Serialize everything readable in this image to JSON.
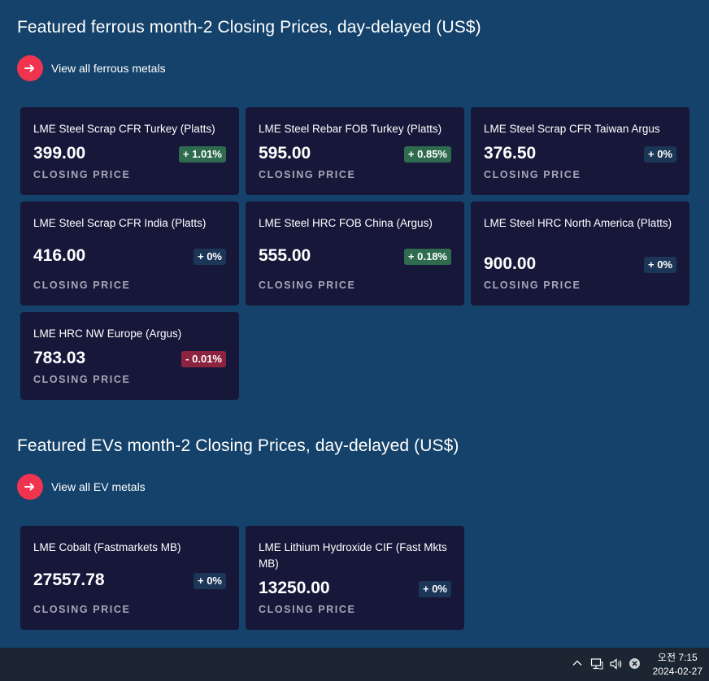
{
  "ferrous": {
    "title": "Featured ferrous month-2 Closing Prices, day-delayed (US$)",
    "link_label": "View all ferrous metals",
    "cards": [
      {
        "name": "LME Steel Scrap CFR Turkey (Platts)",
        "price": "399.00",
        "change": "+ 1.01%",
        "direction": "up",
        "label": "CLOSING PRICE"
      },
      {
        "name": "LME Steel Rebar FOB Turkey (Platts)",
        "price": "595.00",
        "change": "+ 0.85%",
        "direction": "up",
        "label": "CLOSING PRICE"
      },
      {
        "name": "LME Steel Scrap CFR Taiwan Argus",
        "price": "376.50",
        "change": "+ 0%",
        "direction": "flat",
        "label": "CLOSING PRICE"
      },
      {
        "name": "LME Steel Scrap CFR India (Platts)",
        "price": "416.00",
        "change": "+ 0%",
        "direction": "flat",
        "label": "CLOSING PRICE"
      },
      {
        "name": "LME Steel HRC FOB China (Argus)",
        "price": "555.00",
        "change": "+ 0.18%",
        "direction": "up",
        "label": "CLOSING PRICE"
      },
      {
        "name": "LME Steel HRC North America (Platts)",
        "price": "900.00",
        "change": "+ 0%",
        "direction": "flat",
        "label": "CLOSING PRICE"
      },
      {
        "name": "LME HRC NW Europe (Argus)",
        "price": "783.03",
        "change": "- 0.01%",
        "direction": "down",
        "label": "CLOSING PRICE"
      }
    ]
  },
  "ev": {
    "title": "Featured EVs month-2 Closing Prices, day-delayed (US$)",
    "link_label": "View all EV metals",
    "cards": [
      {
        "name": "LME Cobalt (Fastmarkets MB)",
        "price": "27557.78",
        "change": "+ 0%",
        "direction": "flat",
        "label": "CLOSING PRICE"
      },
      {
        "name": "LME Lithium Hydroxide CIF (Fast Mkts MB)",
        "price": "13250.00",
        "change": "+ 0%",
        "direction": "flat",
        "label": "CLOSING PRICE"
      }
    ]
  },
  "colors": {
    "background": "#14426a",
    "card": "#17173a",
    "accent": "#f0344f",
    "up": "#2e6b4f",
    "flat": "#1b3656",
    "down": "#8c2440"
  },
  "taskbar": {
    "tray_icons": [
      "chevron-up-icon",
      "network-icon",
      "volume-icon",
      "close-circle-icon"
    ],
    "time": "오전 7:15",
    "date": "2024-02-27"
  }
}
